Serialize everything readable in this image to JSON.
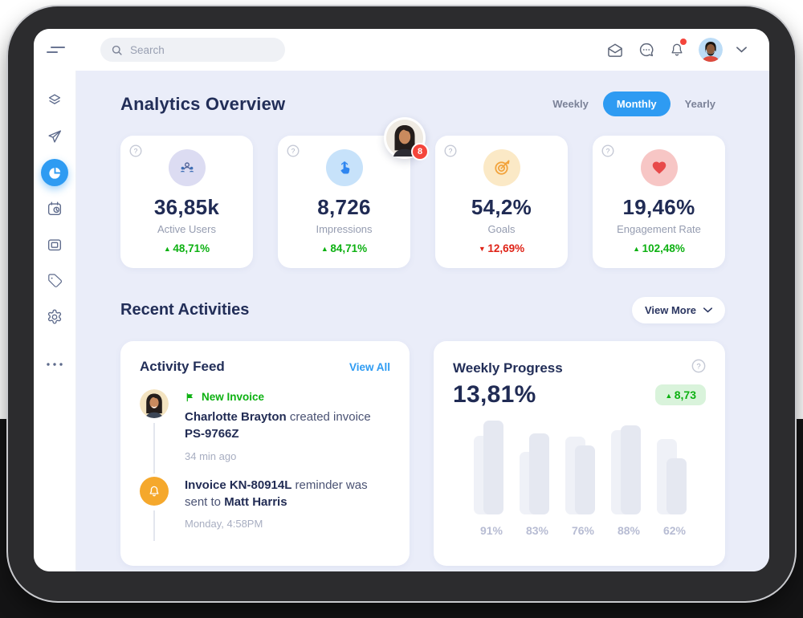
{
  "topbar": {
    "search_placeholder": "Search"
  },
  "page": {
    "title": "Analytics Overview",
    "section_title": "Recent Activities",
    "view_more_label": "View More"
  },
  "tabs": [
    {
      "label": "Weekly",
      "active": false
    },
    {
      "label": "Monthly",
      "active": true
    },
    {
      "label": "Yearly",
      "active": false
    }
  ],
  "notification": {
    "count": "8"
  },
  "stats": [
    {
      "value": "36,85k",
      "label": "Active Users",
      "delta": "48,71%",
      "trend": "up",
      "icon": "users-group-icon"
    },
    {
      "value": "8,726",
      "label": "Impressions",
      "delta": "84,71%",
      "trend": "up",
      "icon": "tap-click-icon"
    },
    {
      "value": "54,2%",
      "label": "Goals",
      "delta": "12,69%",
      "trend": "down",
      "icon": "target-icon"
    },
    {
      "value": "19,46%",
      "label": "Engagement Rate",
      "delta": "102,48%",
      "trend": "up",
      "icon": "heart-icon"
    }
  ],
  "activity": {
    "title": "Activity Feed",
    "view_all_label": "View All",
    "items": [
      {
        "tag": "New Invoice",
        "name": "Charlotte Brayton",
        "mid": " created invoice ",
        "code": "PS-9766Z",
        "time": "34 min ago"
      },
      {
        "bold1": "Invoice KN-80914L",
        "mid": " reminder was sent to ",
        "bold2": "Matt Harris",
        "time": "Monday, 4:58PM"
      }
    ]
  },
  "weekly": {
    "title": "Weekly Progress",
    "value": "13,81%",
    "badge_delta": "8,73"
  },
  "chart_data": {
    "type": "bar",
    "title": "Weekly Progress",
    "categories": [
      "91%",
      "83%",
      "76%",
      "88%",
      "62%"
    ],
    "series": [
      {
        "name": "secondary-bar",
        "values": [
          98,
          78,
          97,
          105,
          94
        ]
      },
      {
        "name": "primary-bar",
        "values": [
          117,
          101,
          86,
          111,
          70
        ]
      }
    ],
    "ylim": [
      0,
      122
    ],
    "unit": "rendered bar height px; category labels show completion %",
    "grid": false,
    "legend": "none"
  },
  "colors": {
    "accent_blue": "#2e9bf2",
    "navy_text": "#222e58",
    "green_up": "#0db112",
    "red_down": "#df2317",
    "badge_red": "#f4453c",
    "content_bg": "#eaedf9",
    "bar_light": "#eff1f7",
    "bar_dark": "#e5e8f1",
    "bell_orange": "#f5a82c"
  },
  "icons": {
    "top": [
      "menu-toggle-icon",
      "search-icon",
      "mail-icon",
      "chat-icon",
      "bell-icon",
      "user-avatar",
      "chevron-down-icon"
    ],
    "sidebar": [
      "layers-icon",
      "send-icon",
      "pie-chart-icon",
      "calendar-clock-icon",
      "frame-icon",
      "tag-icon",
      "gear-icon",
      "ellipsis-icon"
    ],
    "cards": [
      "help-icon",
      "users-group-icon",
      "tap-click-icon",
      "target-icon",
      "heart-icon",
      "flag-icon",
      "bell-icon"
    ]
  }
}
